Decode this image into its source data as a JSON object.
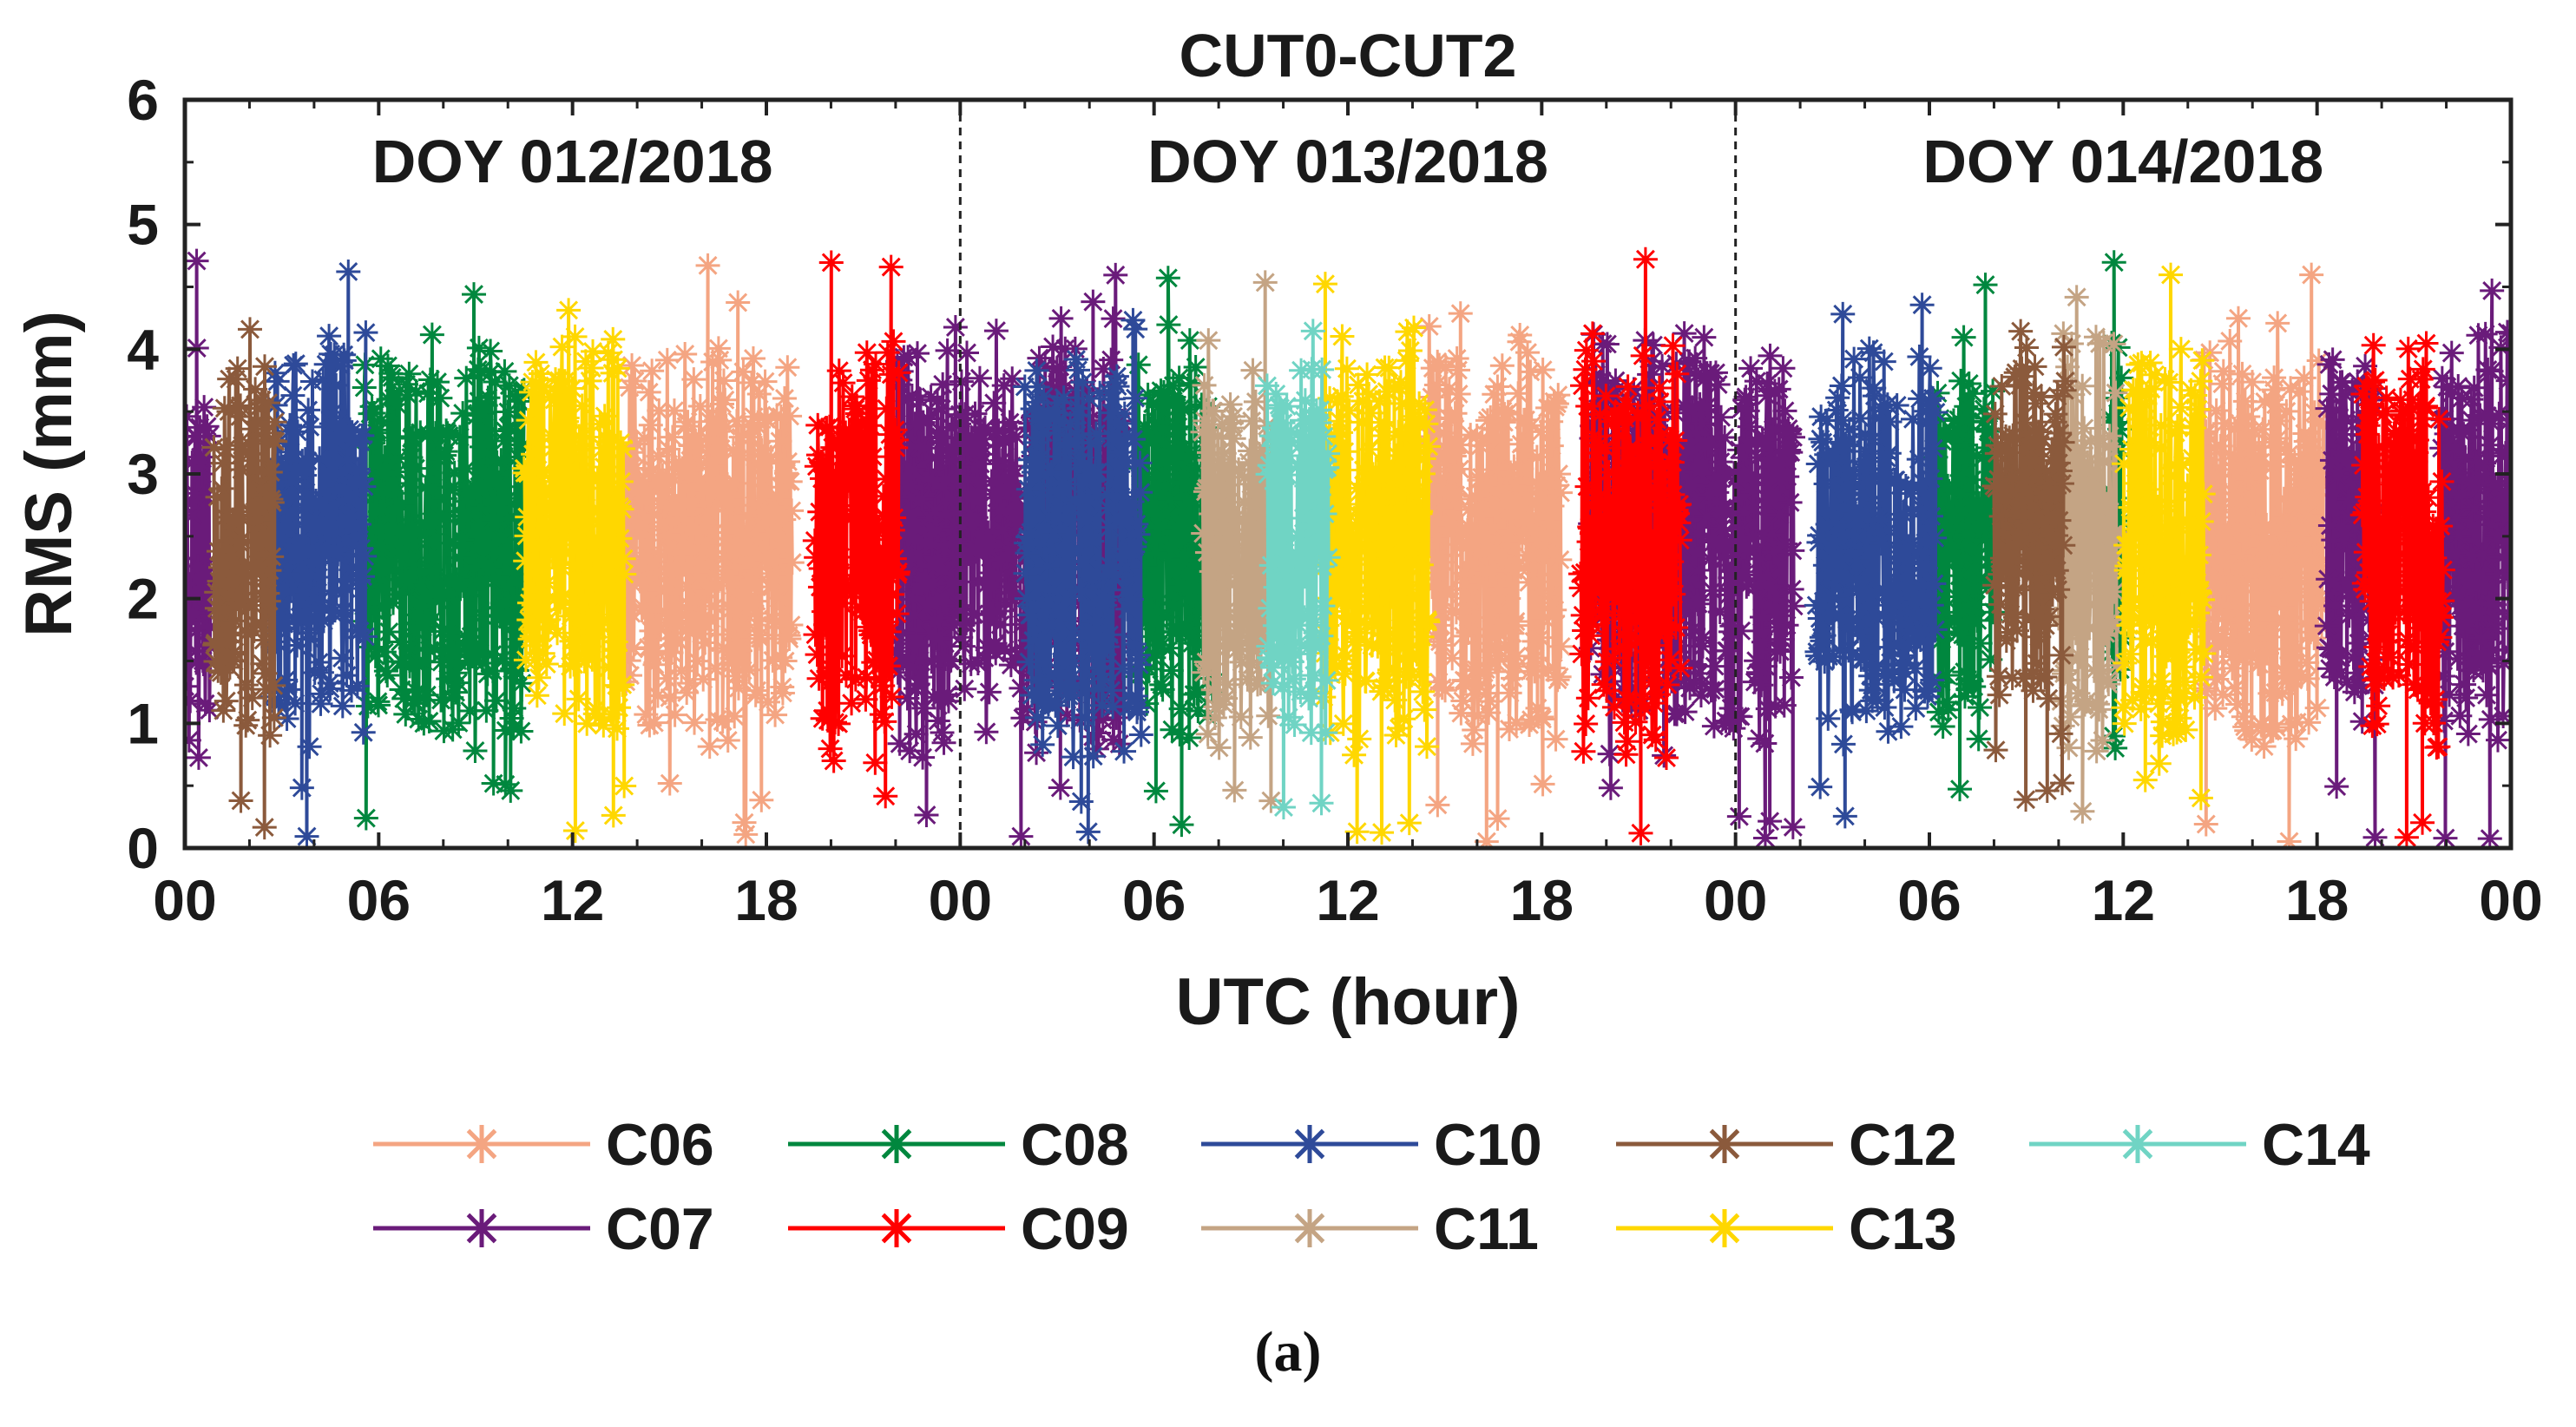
{
  "chart_data": {
    "type": "scatter",
    "title": "CUT0-CUT2",
    "xlabel": "UTC (hour)",
    "ylabel": "RMS (mm)",
    "xlim": [
      0,
      72
    ],
    "ylim": [
      0,
      6
    ],
    "xticks": [
      0,
      6,
      12,
      18,
      24,
      30,
      36,
      42,
      48,
      54,
      60,
      66,
      72
    ],
    "xtick_labels": [
      "00",
      "06",
      "12",
      "18",
      "00",
      "06",
      "12",
      "18",
      "00",
      "06",
      "12",
      "18",
      "00"
    ],
    "yticks": [
      0,
      1,
      2,
      3,
      4,
      5,
      6
    ],
    "ytick_labels": [
      "0",
      "1",
      "2",
      "3",
      "4",
      "5",
      "6"
    ],
    "day_boundaries": [
      24,
      48
    ],
    "day_labels": [
      {
        "label": "DOY 012/2018",
        "x": 12
      },
      {
        "label": "DOY 013/2018",
        "x": 36
      },
      {
        "label": "DOY 014/2018",
        "x": 60
      }
    ],
    "legend_position": "bottom",
    "series": [
      {
        "name": "C06",
        "color": "#F4A582",
        "intervals": [
          [
            13.6,
            18.8
          ],
          [
            38.5,
            42.6
          ],
          [
            62.5,
            66.2
          ]
        ]
      },
      {
        "name": "C07",
        "color": "#6A1B7A",
        "intervals": [
          [
            0,
            0.8
          ],
          [
            22.0,
            29.0
          ],
          [
            43.5,
            49.8
          ],
          [
            66.3,
            67.8
          ],
          [
            69.8,
            72
          ]
        ]
      },
      {
        "name": "C08",
        "color": "#00873E",
        "intervals": [
          [
            5.5,
            10.5
          ],
          [
            29.5,
            31.8
          ],
          [
            54.2,
            56.0
          ],
          [
            59.6,
            60.0
          ]
        ]
      },
      {
        "name": "C09",
        "color": "#FF0000",
        "intervals": [
          [
            19.5,
            22.1
          ],
          [
            43.2,
            46.3
          ],
          [
            67.4,
            69.9
          ]
        ]
      },
      {
        "name": "C10",
        "color": "#2E4A99",
        "intervals": [
          [
            2.7,
            5.6
          ],
          [
            26.0,
            29.6
          ],
          [
            50.5,
            54.2
          ]
        ]
      },
      {
        "name": "C11",
        "color": "#C4A484",
        "intervals": [
          [
            31.5,
            33.7
          ],
          [
            58.0,
            59.8
          ]
        ]
      },
      {
        "name": "C12",
        "color": "#8B5A3C",
        "intervals": [
          [
            0.9,
            2.8
          ],
          [
            56.0,
            58.2
          ]
        ]
      },
      {
        "name": "C13",
        "color": "#FFD700",
        "intervals": [
          [
            10.5,
            13.6
          ],
          [
            35.2,
            38.5
          ],
          [
            60.0,
            62.5
          ]
        ]
      },
      {
        "name": "C14",
        "color": "#70D4C4",
        "intervals": [
          [
            33.5,
            35.4
          ]
        ]
      }
    ],
    "legend_order": [
      "C06",
      "C08",
      "C10",
      "C12",
      "C14",
      "C07",
      "C09",
      "C11",
      "C13"
    ],
    "marker": "asterisk"
  },
  "caption": "(a)"
}
